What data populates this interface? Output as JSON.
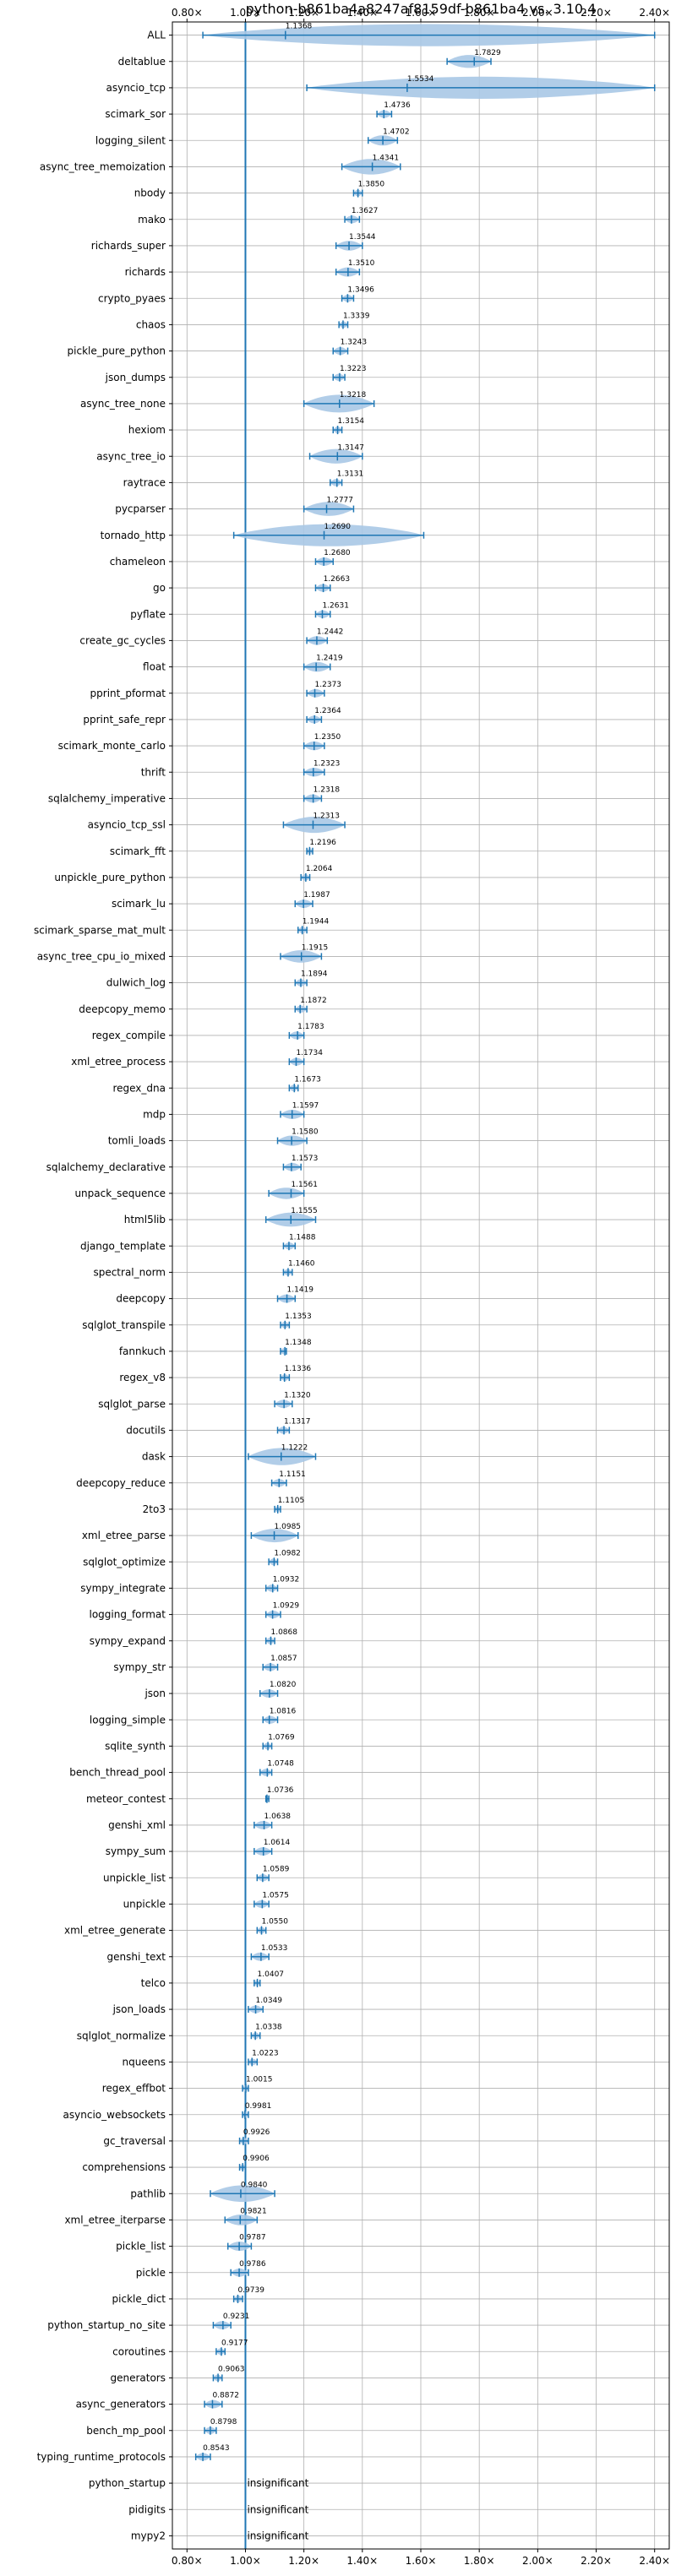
{
  "chart_data": {
    "type": "violin",
    "title": "python-b861ba4a8247af8159df-b861ba4 vs. 3.10.4",
    "xlim": [
      0.75,
      2.45
    ],
    "x_ticks": [
      0.8,
      1.0,
      1.2,
      1.4,
      1.6,
      1.8,
      2.0,
      2.2,
      2.4
    ],
    "x_tick_labels": [
      "0.80×",
      "1.00×",
      "1.20×",
      "1.40×",
      "1.60×",
      "1.80×",
      "2.00×",
      "2.20×",
      "2.40×"
    ],
    "reference_line": 1.0,
    "grid": true,
    "colors": {
      "violin": "#a9c8e6",
      "stroke": "#1f77b4",
      "grid": "#b0b0b0"
    },
    "insignificant_label": "insignificant",
    "benchmarks": [
      {
        "name": "ALL",
        "value": 1.1368,
        "label": "1.1368",
        "min": 0.8543,
        "max": 2.4
      },
      {
        "name": "deltablue",
        "value": 1.7829,
        "label": "1.7829",
        "min": 1.69,
        "max": 1.84
      },
      {
        "name": "asyncio_tcp",
        "value": 1.5534,
        "label": "1.5534",
        "min": 1.21,
        "max": 2.4
      },
      {
        "name": "scimark_sor",
        "value": 1.4736,
        "label": "1.4736",
        "min": 1.45,
        "max": 1.5
      },
      {
        "name": "logging_silent",
        "value": 1.4702,
        "label": "1.4702",
        "min": 1.42,
        "max": 1.52
      },
      {
        "name": "async_tree_memoization",
        "value": 1.4341,
        "label": "1.4341",
        "min": 1.33,
        "max": 1.53
      },
      {
        "name": "nbody",
        "value": 1.385,
        "label": "1.3850",
        "min": 1.37,
        "max": 1.4
      },
      {
        "name": "mako",
        "value": 1.3627,
        "label": "1.3627",
        "min": 1.34,
        "max": 1.39
      },
      {
        "name": "richards_super",
        "value": 1.3544,
        "label": "1.3544",
        "min": 1.31,
        "max": 1.4
      },
      {
        "name": "richards",
        "value": 1.351,
        "label": "1.3510",
        "min": 1.31,
        "max": 1.39
      },
      {
        "name": "crypto_pyaes",
        "value": 1.3496,
        "label": "1.3496",
        "min": 1.33,
        "max": 1.37
      },
      {
        "name": "chaos",
        "value": 1.3339,
        "label": "1.3339",
        "min": 1.32,
        "max": 1.35
      },
      {
        "name": "pickle_pure_python",
        "value": 1.3243,
        "label": "1.3243",
        "min": 1.3,
        "max": 1.35
      },
      {
        "name": "json_dumps",
        "value": 1.3223,
        "label": "1.3223",
        "min": 1.3,
        "max": 1.34
      },
      {
        "name": "async_tree_none",
        "value": 1.3218,
        "label": "1.3218",
        "min": 1.2,
        "max": 1.44
      },
      {
        "name": "hexiom",
        "value": 1.3154,
        "label": "1.3154",
        "min": 1.3,
        "max": 1.33
      },
      {
        "name": "async_tree_io",
        "value": 1.3147,
        "label": "1.3147",
        "min": 1.22,
        "max": 1.4
      },
      {
        "name": "raytrace",
        "value": 1.3131,
        "label": "1.3131",
        "min": 1.29,
        "max": 1.33
      },
      {
        "name": "pycparser",
        "value": 1.2777,
        "label": "1.2777",
        "min": 1.2,
        "max": 1.37
      },
      {
        "name": "tornado_http",
        "value": 1.269,
        "label": "1.2690",
        "min": 0.96,
        "max": 1.61
      },
      {
        "name": "chameleon",
        "value": 1.268,
        "label": "1.2680",
        "min": 1.24,
        "max": 1.3
      },
      {
        "name": "go",
        "value": 1.2663,
        "label": "1.2663",
        "min": 1.24,
        "max": 1.29
      },
      {
        "name": "pyflate",
        "value": 1.2631,
        "label": "1.2631",
        "min": 1.24,
        "max": 1.29
      },
      {
        "name": "create_gc_cycles",
        "value": 1.2442,
        "label": "1.2442",
        "min": 1.21,
        "max": 1.28
      },
      {
        "name": "float",
        "value": 1.2419,
        "label": "1.2419",
        "min": 1.2,
        "max": 1.29
      },
      {
        "name": "pprint_pformat",
        "value": 1.2373,
        "label": "1.2373",
        "min": 1.21,
        "max": 1.27
      },
      {
        "name": "pprint_safe_repr",
        "value": 1.2364,
        "label": "1.2364",
        "min": 1.21,
        "max": 1.26
      },
      {
        "name": "scimark_monte_carlo",
        "value": 1.235,
        "label": "1.2350",
        "min": 1.2,
        "max": 1.27
      },
      {
        "name": "thrift",
        "value": 1.2323,
        "label": "1.2323",
        "min": 1.2,
        "max": 1.27
      },
      {
        "name": "sqlalchemy_imperative",
        "value": 1.2318,
        "label": "1.2318",
        "min": 1.2,
        "max": 1.26
      },
      {
        "name": "asyncio_tcp_ssl",
        "value": 1.2313,
        "label": "1.2313",
        "min": 1.13,
        "max": 1.34
      },
      {
        "name": "scimark_fft",
        "value": 1.2196,
        "label": "1.2196",
        "min": 1.21,
        "max": 1.23
      },
      {
        "name": "unpickle_pure_python",
        "value": 1.2064,
        "label": "1.2064",
        "min": 1.19,
        "max": 1.22
      },
      {
        "name": "scimark_lu",
        "value": 1.1987,
        "label": "1.1987",
        "min": 1.17,
        "max": 1.23
      },
      {
        "name": "scimark_sparse_mat_mult",
        "value": 1.1944,
        "label": "1.1944",
        "min": 1.18,
        "max": 1.21
      },
      {
        "name": "async_tree_cpu_io_mixed",
        "value": 1.1915,
        "label": "1.1915",
        "min": 1.12,
        "max": 1.26
      },
      {
        "name": "dulwich_log",
        "value": 1.1894,
        "label": "1.1894",
        "min": 1.17,
        "max": 1.21
      },
      {
        "name": "deepcopy_memo",
        "value": 1.1872,
        "label": "1.1872",
        "min": 1.17,
        "max": 1.21
      },
      {
        "name": "regex_compile",
        "value": 1.1783,
        "label": "1.1783",
        "min": 1.15,
        "max": 1.2
      },
      {
        "name": "xml_etree_process",
        "value": 1.1734,
        "label": "1.1734",
        "min": 1.15,
        "max": 1.2
      },
      {
        "name": "regex_dna",
        "value": 1.1673,
        "label": "1.1673",
        "min": 1.15,
        "max": 1.18
      },
      {
        "name": "mdp",
        "value": 1.1597,
        "label": "1.1597",
        "min": 1.12,
        "max": 1.2
      },
      {
        "name": "tomli_loads",
        "value": 1.158,
        "label": "1.1580",
        "min": 1.11,
        "max": 1.21
      },
      {
        "name": "sqlalchemy_declarative",
        "value": 1.1573,
        "label": "1.1573",
        "min": 1.13,
        "max": 1.19
      },
      {
        "name": "unpack_sequence",
        "value": 1.1561,
        "label": "1.1561",
        "min": 1.08,
        "max": 1.2
      },
      {
        "name": "html5lib",
        "value": 1.1555,
        "label": "1.1555",
        "min": 1.07,
        "max": 1.24
      },
      {
        "name": "django_template",
        "value": 1.1488,
        "label": "1.1488",
        "min": 1.13,
        "max": 1.17
      },
      {
        "name": "spectral_norm",
        "value": 1.146,
        "label": "1.1460",
        "min": 1.13,
        "max": 1.16
      },
      {
        "name": "deepcopy",
        "value": 1.1419,
        "label": "1.1419",
        "min": 1.11,
        "max": 1.17
      },
      {
        "name": "sqlglot_transpile",
        "value": 1.1353,
        "label": "1.1353",
        "min": 1.12,
        "max": 1.15
      },
      {
        "name": "fannkuch",
        "value": 1.1348,
        "label": "1.1348",
        "min": 1.12,
        "max": 1.14
      },
      {
        "name": "regex_v8",
        "value": 1.1336,
        "label": "1.1336",
        "min": 1.12,
        "max": 1.15
      },
      {
        "name": "sqlglot_parse",
        "value": 1.132,
        "label": "1.1320",
        "min": 1.1,
        "max": 1.16
      },
      {
        "name": "docutils",
        "value": 1.1317,
        "label": "1.1317",
        "min": 1.11,
        "max": 1.15
      },
      {
        "name": "dask",
        "value": 1.1222,
        "label": "1.1222",
        "min": 1.01,
        "max": 1.24
      },
      {
        "name": "deepcopy_reduce",
        "value": 1.1151,
        "label": "1.1151",
        "min": 1.09,
        "max": 1.14
      },
      {
        "name": "2to3",
        "value": 1.1105,
        "label": "1.1105",
        "min": 1.1,
        "max": 1.12
      },
      {
        "name": "xml_etree_parse",
        "value": 1.0985,
        "label": "1.0985",
        "min": 1.02,
        "max": 1.18
      },
      {
        "name": "sqlglot_optimize",
        "value": 1.0982,
        "label": "1.0982",
        "min": 1.08,
        "max": 1.11
      },
      {
        "name": "sympy_integrate",
        "value": 1.0932,
        "label": "1.0932",
        "min": 1.07,
        "max": 1.11
      },
      {
        "name": "logging_format",
        "value": 1.0929,
        "label": "1.0929",
        "min": 1.07,
        "max": 1.12
      },
      {
        "name": "sympy_expand",
        "value": 1.0868,
        "label": "1.0868",
        "min": 1.07,
        "max": 1.1
      },
      {
        "name": "sympy_str",
        "value": 1.0857,
        "label": "1.0857",
        "min": 1.06,
        "max": 1.11
      },
      {
        "name": "json",
        "value": 1.082,
        "label": "1.0820",
        "min": 1.05,
        "max": 1.11
      },
      {
        "name": "logging_simple",
        "value": 1.0816,
        "label": "1.0816",
        "min": 1.06,
        "max": 1.11
      },
      {
        "name": "sqlite_synth",
        "value": 1.0769,
        "label": "1.0769",
        "min": 1.06,
        "max": 1.09
      },
      {
        "name": "bench_thread_pool",
        "value": 1.0748,
        "label": "1.0748",
        "min": 1.05,
        "max": 1.09
      },
      {
        "name": "meteor_contest",
        "value": 1.0736,
        "label": "1.0736",
        "min": 1.07,
        "max": 1.08
      },
      {
        "name": "genshi_xml",
        "value": 1.0638,
        "label": "1.0638",
        "min": 1.03,
        "max": 1.09
      },
      {
        "name": "sympy_sum",
        "value": 1.0614,
        "label": "1.0614",
        "min": 1.03,
        "max": 1.09
      },
      {
        "name": "unpickle_list",
        "value": 1.0589,
        "label": "1.0589",
        "min": 1.04,
        "max": 1.08
      },
      {
        "name": "unpickle",
        "value": 1.0575,
        "label": "1.0575",
        "min": 1.03,
        "max": 1.08
      },
      {
        "name": "xml_etree_generate",
        "value": 1.055,
        "label": "1.0550",
        "min": 1.04,
        "max": 1.07
      },
      {
        "name": "genshi_text",
        "value": 1.0533,
        "label": "1.0533",
        "min": 1.02,
        "max": 1.08
      },
      {
        "name": "telco",
        "value": 1.0407,
        "label": "1.0407",
        "min": 1.03,
        "max": 1.05
      },
      {
        "name": "json_loads",
        "value": 1.0349,
        "label": "1.0349",
        "min": 1.01,
        "max": 1.06
      },
      {
        "name": "sqlglot_normalize",
        "value": 1.0338,
        "label": "1.0338",
        "min": 1.02,
        "max": 1.05
      },
      {
        "name": "nqueens",
        "value": 1.0223,
        "label": "1.0223",
        "min": 1.01,
        "max": 1.04
      },
      {
        "name": "regex_effbot",
        "value": 1.0015,
        "label": "1.0015",
        "min": 0.99,
        "max": 1.01
      },
      {
        "name": "asyncio_websockets",
        "value": 0.9981,
        "label": "0.9981",
        "min": 0.99,
        "max": 1.01
      },
      {
        "name": "gc_traversal",
        "value": 0.9926,
        "label": "0.9926",
        "min": 0.98,
        "max": 1.01
      },
      {
        "name": "comprehensions",
        "value": 0.9906,
        "label": "0.9906",
        "min": 0.98,
        "max": 1.0
      },
      {
        "name": "pathlib",
        "value": 0.984,
        "label": "0.9840",
        "min": 0.88,
        "max": 1.1
      },
      {
        "name": "xml_etree_iterparse",
        "value": 0.9821,
        "label": "0.9821",
        "min": 0.93,
        "max": 1.04
      },
      {
        "name": "pickle_list",
        "value": 0.9787,
        "label": "0.9787",
        "min": 0.94,
        "max": 1.02
      },
      {
        "name": "pickle",
        "value": 0.9786,
        "label": "0.9786",
        "min": 0.95,
        "max": 1.01
      },
      {
        "name": "pickle_dict",
        "value": 0.9739,
        "label": "0.9739",
        "min": 0.96,
        "max": 0.99
      },
      {
        "name": "python_startup_no_site",
        "value": 0.9231,
        "label": "0.9231",
        "min": 0.89,
        "max": 0.95
      },
      {
        "name": "coroutines",
        "value": 0.9177,
        "label": "0.9177",
        "min": 0.9,
        "max": 0.93
      },
      {
        "name": "generators",
        "value": 0.9063,
        "label": "0.9063",
        "min": 0.89,
        "max": 0.92
      },
      {
        "name": "async_generators",
        "value": 0.8872,
        "label": "0.8872",
        "min": 0.86,
        "max": 0.92
      },
      {
        "name": "bench_mp_pool",
        "value": 0.8798,
        "label": "0.8798",
        "min": 0.86,
        "max": 0.9
      },
      {
        "name": "typing_runtime_protocols",
        "value": 0.8543,
        "label": "0.8543",
        "min": 0.83,
        "max": 0.88
      },
      {
        "name": "python_startup",
        "insignificant": true
      },
      {
        "name": "pidigits",
        "insignificant": true
      },
      {
        "name": "mypy2",
        "insignificant": true
      }
    ]
  }
}
